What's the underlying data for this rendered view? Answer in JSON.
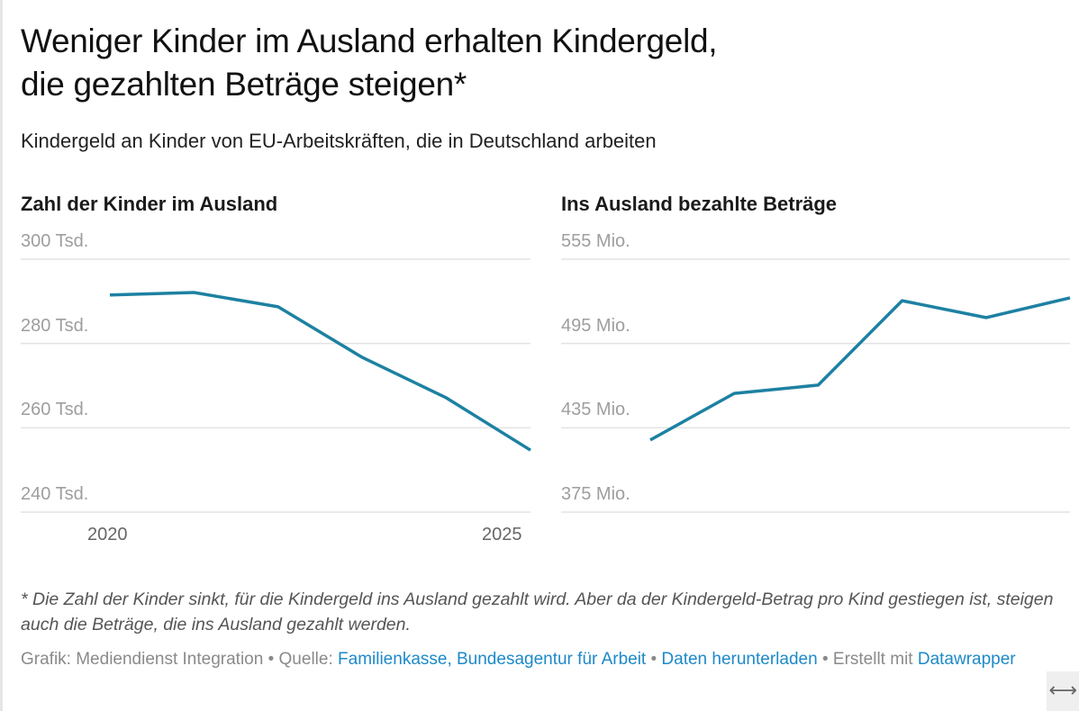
{
  "header": {
    "title_line1": "Weniger Kinder im Ausland erhalten Kindergeld,",
    "title_line2": "die gezahlten Beträge steigen*",
    "subtitle": "Kindergeld an Kinder von EU-Arbeitskräften, die in Deutschland arbeiten"
  },
  "chart_data": [
    {
      "type": "line",
      "title": "Zahl der Kinder im Ausland",
      "x": [
        2020,
        2021,
        2022,
        2023,
        2024,
        2025
      ],
      "values": [
        291.5,
        292.1,
        288.7,
        276.7,
        267.1,
        254.7
      ],
      "unit": "Tsd.",
      "ylim": [
        240,
        300
      ],
      "yticks": [
        300,
        280,
        260,
        240
      ],
      "ytick_labels": [
        "300 Tsd.",
        "280 Tsd.",
        "260 Tsd.",
        "240 Tsd."
      ],
      "xtick_labels": [
        "2020",
        "2025"
      ],
      "grid": true,
      "color": "#1d81a2"
    },
    {
      "type": "line",
      "title": "Ins Ausland bezahlte Beträge",
      "x": [
        2020,
        2021,
        2022,
        2023,
        2024,
        2025
      ],
      "values": [
        426.3,
        459.5,
        465.4,
        525.5,
        513.4,
        527.5
      ],
      "unit": "Mio.",
      "ylim": [
        375,
        555
      ],
      "yticks": [
        555,
        495,
        435,
        375
      ],
      "ytick_labels": [
        "555 Mio.",
        "495 Mio.",
        "435 Mio.",
        "375 Mio."
      ],
      "xtick_labels": [],
      "grid": true,
      "color": "#1d81a2"
    }
  ],
  "footer": {
    "note": "* Die Zahl der Kinder sinkt, für die Kindergeld ins Ausland gezahlt wird. Aber da der Kindergeld-Betrag pro Kind gestiegen ist, steigen auch die Beträge, die ins Ausland gezahlt werden.",
    "grafik_label": "Grafik: Mediendienst Integration",
    "separator": " • ",
    "quelle_label": "Quelle: ",
    "source_link": "Familienkasse, Bundesagentur für Arbeit",
    "download_link": "Daten herunterladen",
    "created_with": "Erstellt mit ",
    "datawrapper_link": "Datawrapper",
    "link_color": "#1d89c8"
  },
  "resize_icon": {
    "name": "resize-horizontal-icon",
    "glyph": "⟷"
  }
}
